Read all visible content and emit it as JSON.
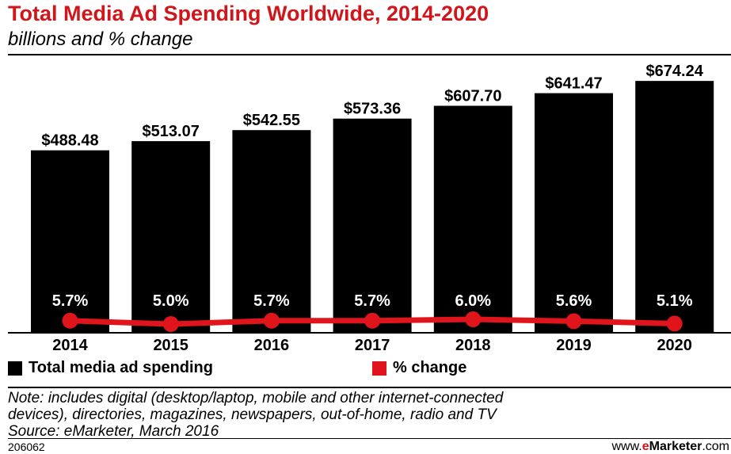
{
  "chart_data": {
    "type": "bar",
    "title": "Total Media Ad Spending Worldwide, 2014-2020",
    "subtitle": "billions and % change",
    "categories": [
      "2014",
      "2015",
      "2016",
      "2017",
      "2018",
      "2019",
      "2020"
    ],
    "series": [
      {
        "name": "Total media ad spending",
        "type": "bar",
        "color": "#000000",
        "values": [
          488.48,
          513.07,
          542.55,
          573.36,
          607.7,
          641.47,
          674.24
        ],
        "labels": [
          "$488.48",
          "$513.07",
          "$542.55",
          "$573.36",
          "$607.70",
          "$641.47",
          "$674.24"
        ]
      },
      {
        "name": "% change",
        "type": "line",
        "color": "#e0141b",
        "values": [
          5.7,
          5.0,
          5.7,
          5.7,
          6.0,
          5.6,
          5.1
        ],
        "labels": [
          "5.7%",
          "5.0%",
          "5.7%",
          "5.7%",
          "6.0%",
          "5.6%",
          "5.1%"
        ]
      }
    ],
    "ylim": [
      0,
      700
    ],
    "grid": false,
    "legend": "bottom-left"
  },
  "notes": {
    "line1": "Note: includes digital (desktop/laptop, mobile and other internet-connected",
    "line2": "devices), directories, magazines, newspapers, out-of-home, radio and TV",
    "line3": "Source: eMarketer, March 2016"
  },
  "footer": {
    "chart_id": "206062",
    "brand_prefix": "www.",
    "brand_e": "e",
    "brand_word": "Marketer",
    "brand_suffix": ".com"
  }
}
